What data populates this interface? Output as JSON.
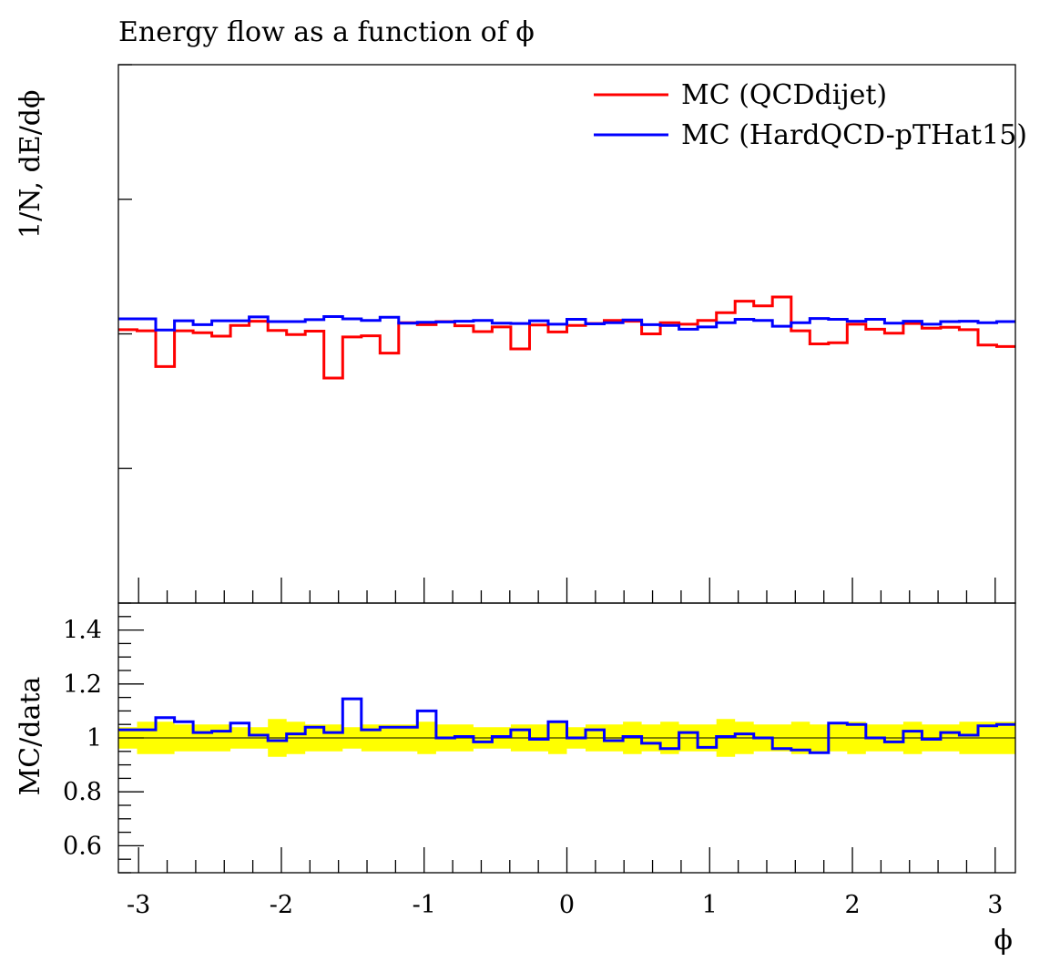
{
  "chart_data": {
    "type": "line",
    "title": "Energy flow as a function of ϕ",
    "xlabel": "ϕ",
    "xlim": [
      -3.1416,
      3.1416
    ],
    "x_ticks": [
      "-3",
      "-2",
      "-1",
      "0",
      "1",
      "2",
      "3"
    ],
    "x_tick_values": [
      -3,
      -2,
      -1,
      0,
      1,
      2,
      3
    ],
    "legend_position": "top-right",
    "colors": {
      "qcd": "#ff0000",
      "hard": "#0000ff",
      "band": "#ffff00",
      "axes": "#000000"
    },
    "main": {
      "ylabel": "1/N, dE/dϕ",
      "ylim": [
        0,
        1.4
      ],
      "y_tick_values": [
        0.35,
        0.7,
        1.05,
        1.4
      ],
      "y_tick_labels": [],
      "series": [
        {
          "name": "MC (QCDdijet)",
          "color": "#ff0000",
          "values": [
            0.711,
            0.708,
            0.615,
            0.708,
            0.703,
            0.694,
            0.722,
            0.733,
            0.709,
            0.698,
            0.707,
            0.585,
            0.692,
            0.695,
            0.65,
            0.729,
            0.724,
            0.732,
            0.721,
            0.706,
            0.718,
            0.661,
            0.723,
            0.705,
            0.722,
            0.727,
            0.735,
            0.733,
            0.7,
            0.729,
            0.725,
            0.735,
            0.755,
            0.785,
            0.773,
            0.796,
            0.708,
            0.674,
            0.677,
            0.725,
            0.712,
            0.702,
            0.727,
            0.715,
            0.717,
            0.711,
            0.671,
            0.667
          ]
        },
        {
          "name": "MC (HardQCD-pTHat15)",
          "color": "#0000ff",
          "values": [
            0.739,
            0.739,
            0.71,
            0.734,
            0.724,
            0.734,
            0.734,
            0.744,
            0.732,
            0.732,
            0.737,
            0.745,
            0.739,
            0.735,
            0.743,
            0.728,
            0.73,
            0.731,
            0.733,
            0.735,
            0.728,
            0.727,
            0.734,
            0.725,
            0.738,
            0.726,
            0.729,
            0.736,
            0.724,
            0.722,
            0.712,
            0.718,
            0.729,
            0.738,
            0.735,
            0.72,
            0.729,
            0.74,
            0.738,
            0.733,
            0.738,
            0.728,
            0.733,
            0.725,
            0.732,
            0.733,
            0.729,
            0.732
          ]
        }
      ]
    },
    "ratio": {
      "ylabel": "MC/data",
      "ylim": [
        0.5,
        1.5
      ],
      "y_tick_values": [
        0.6,
        0.8,
        1.0,
        1.2,
        1.4
      ],
      "y_tick_labels": [
        "0.6",
        "0.8",
        "1",
        "1.2",
        "1.4"
      ],
      "reference": 1.0,
      "band_halfwidth": [
        0.04,
        0.06,
        0.06,
        0.05,
        0.05,
        0.05,
        0.04,
        0.04,
        0.07,
        0.06,
        0.05,
        0.05,
        0.04,
        0.05,
        0.05,
        0.05,
        0.06,
        0.05,
        0.05,
        0.04,
        0.04,
        0.05,
        0.05,
        0.06,
        0.04,
        0.05,
        0.05,
        0.06,
        0.05,
        0.06,
        0.05,
        0.05,
        0.07,
        0.06,
        0.05,
        0.05,
        0.06,
        0.05,
        0.05,
        0.06,
        0.05,
        0.05,
        0.06,
        0.05,
        0.05,
        0.06,
        0.06,
        0.06
      ],
      "series": [
        {
          "name": "MC (HardQCD-pTHat15)",
          "color": "#0000ff",
          "values": [
            1.03,
            1.03,
            1.075,
            1.06,
            1.02,
            1.025,
            1.055,
            1.01,
            0.99,
            1.015,
            1.04,
            1.02,
            1.145,
            1.03,
            1.04,
            1.04,
            1.1,
            1.0,
            1.005,
            0.985,
            1.005,
            1.03,
            0.995,
            1.06,
            1.0,
            1.03,
            0.99,
            1.005,
            0.98,
            0.96,
            1.02,
            0.965,
            1.005,
            1.015,
            1.0,
            0.96,
            0.955,
            0.945,
            1.055,
            1.05,
            1.0,
            0.985,
            1.025,
            0.995,
            1.02,
            1.01,
            1.045,
            1.05
          ]
        }
      ]
    }
  }
}
